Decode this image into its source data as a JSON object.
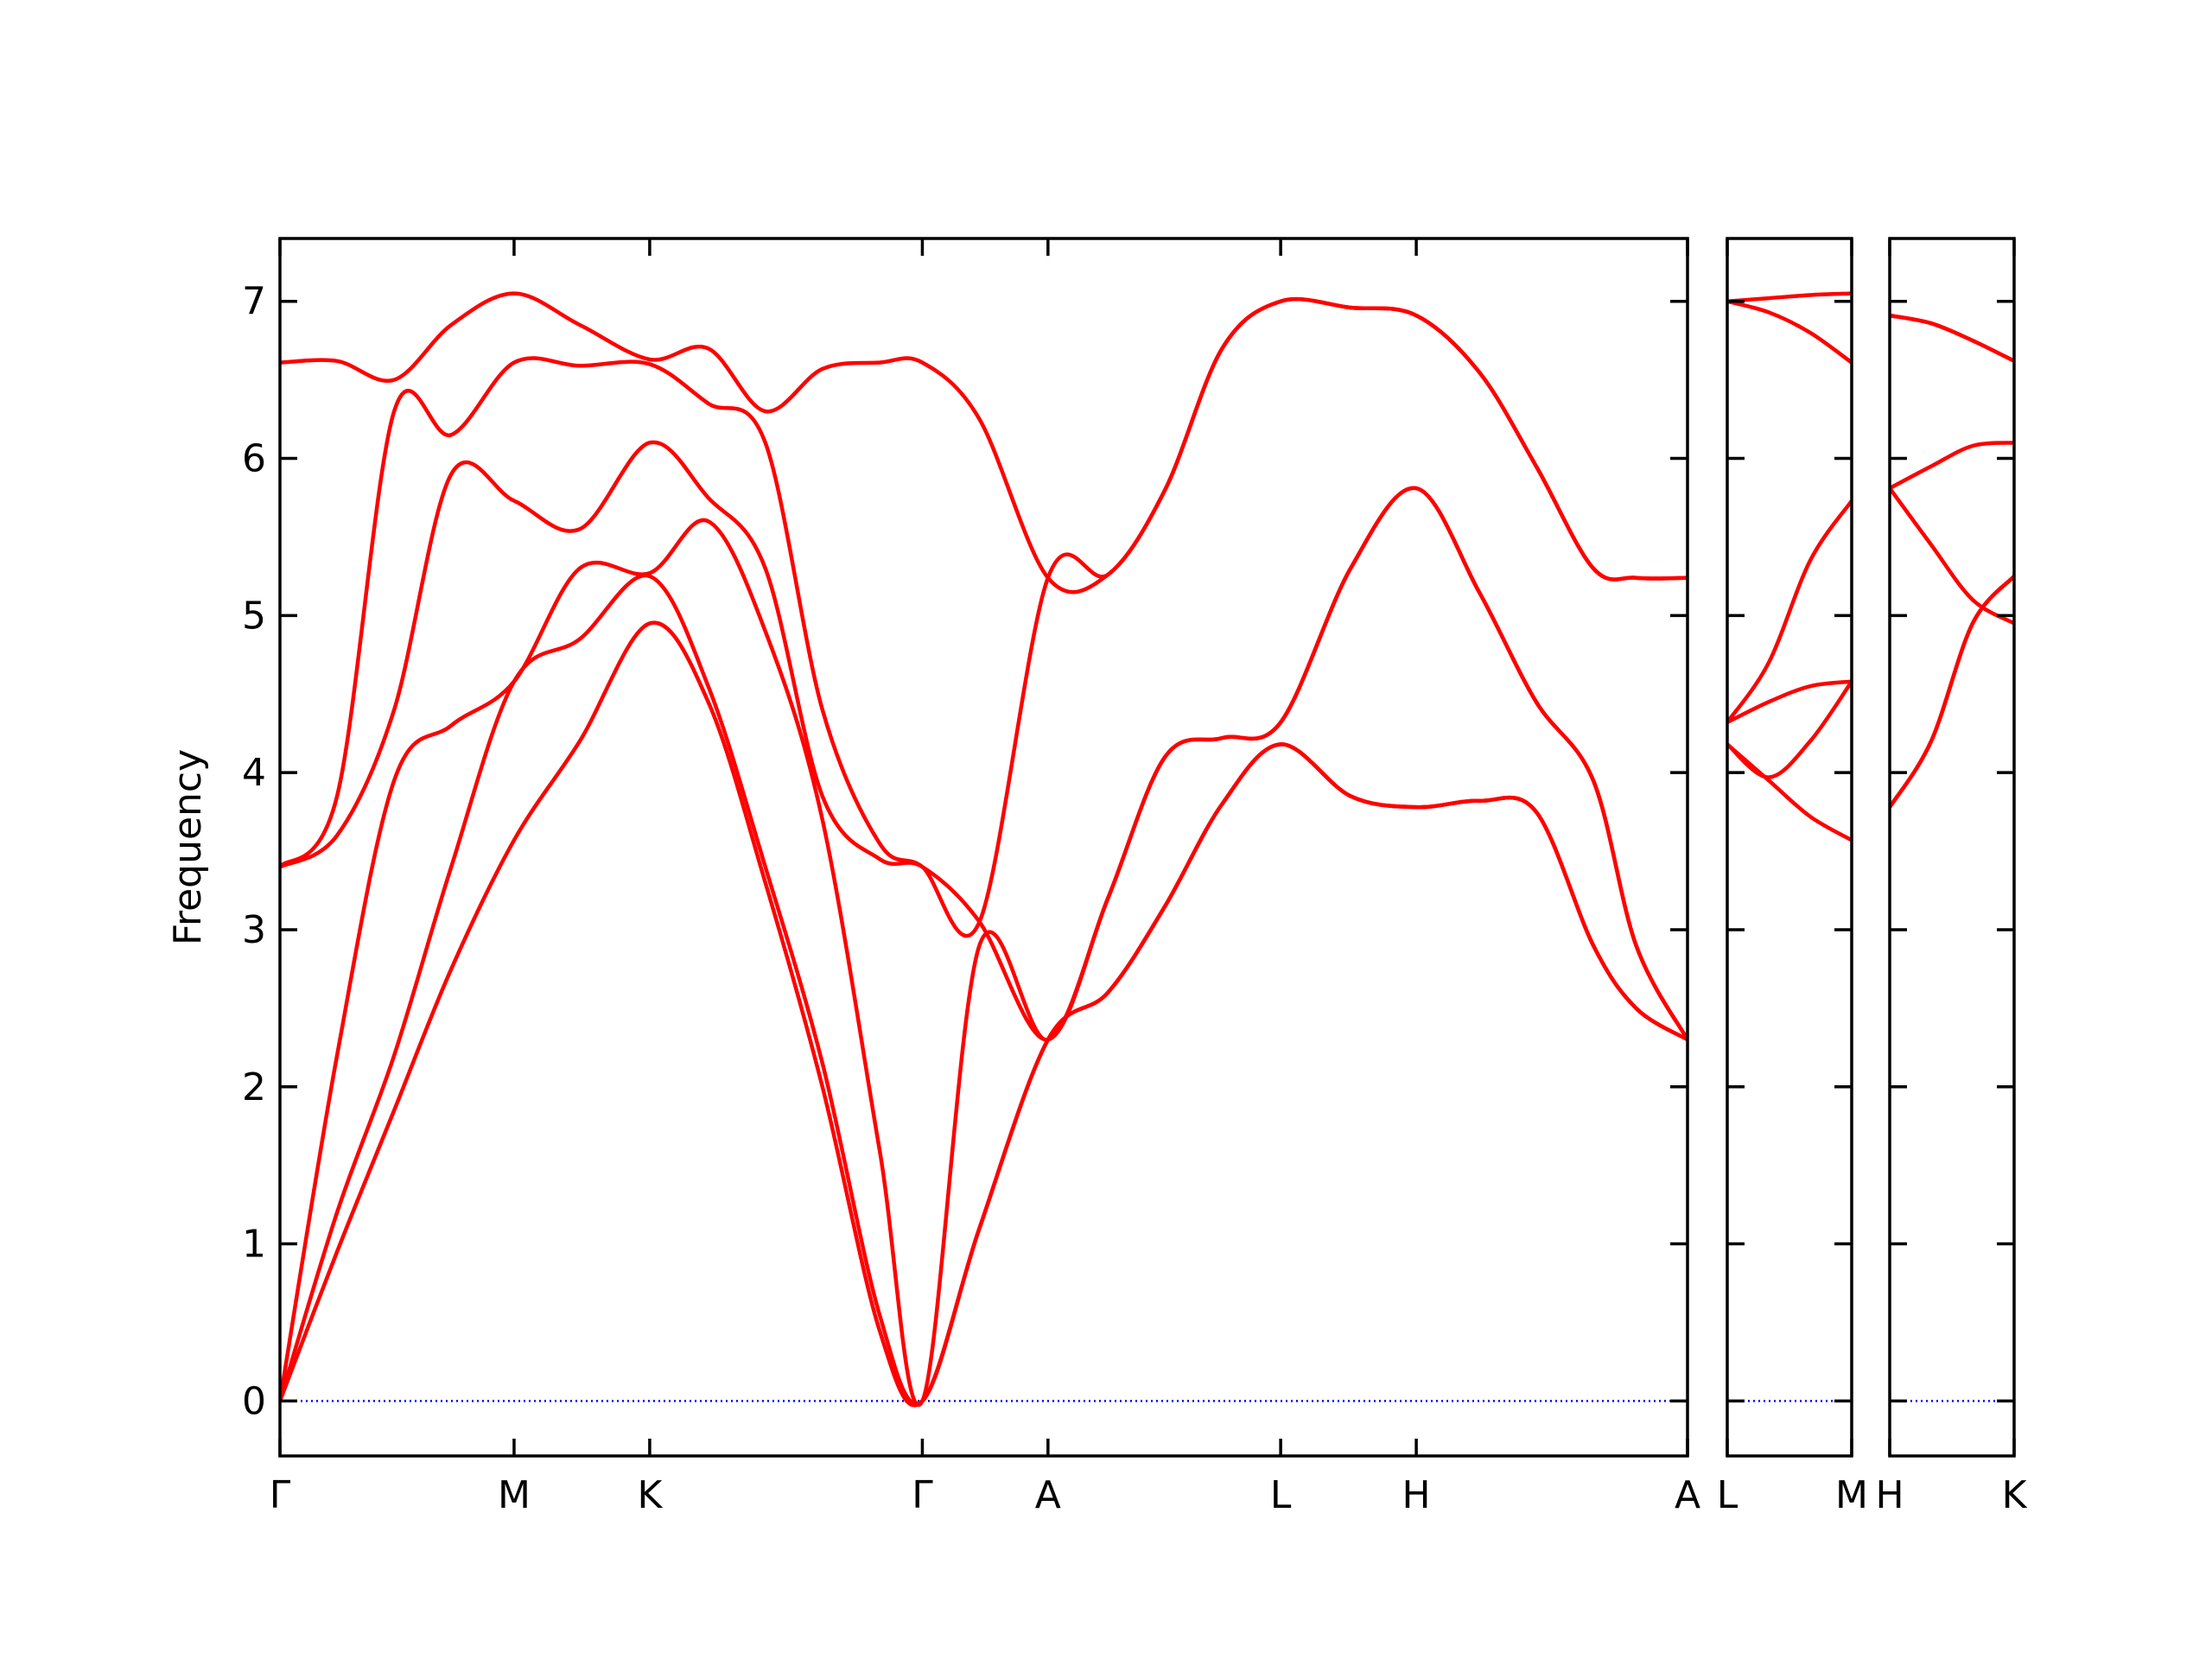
{
  "chart_data": [
    {
      "type": "line",
      "ylabel": "Frequency",
      "show_ytick_labels": true,
      "xlim": [
        0,
        9.86
      ],
      "ylim": [
        -0.35,
        7.4
      ],
      "yticks": [
        0,
        1,
        2,
        3,
        4,
        5,
        6,
        7
      ],
      "xticks": [
        {
          "value": 0,
          "label": "Γ"
        },
        {
          "value": 1.64,
          "label": "M"
        },
        {
          "value": 2.59,
          "label": "K"
        },
        {
          "value": 4.5,
          "label": "Γ"
        },
        {
          "value": 5.38,
          "label": "A"
        },
        {
          "value": 7.01,
          "label": "L"
        },
        {
          "value": 7.96,
          "label": "H"
        },
        {
          "value": 9.86,
          "label": "A"
        }
      ],
      "hline": {
        "y": 0,
        "color": "#0000ff"
      },
      "x": [
        0,
        0.4,
        0.8,
        1.2,
        1.64,
        2.1,
        2.59,
        3.0,
        3.4,
        3.8,
        4.2,
        4.5,
        4.9,
        5.38,
        5.8,
        6.2,
        6.6,
        7.01,
        7.5,
        7.96,
        8.4,
        8.8,
        9.2,
        9.5,
        9.86
      ],
      "series": [
        {
          "color": "#ff0000",
          "values": [
            0,
            0.95,
            1.85,
            2.75,
            3.57,
            4.2,
            4.95,
            4.45,
            3.3,
            2.0,
            0.45,
            0,
            1.1,
            2.3,
            2.6,
            3.15,
            3.8,
            4.18,
            3.85,
            3.78,
            3.82,
            3.75,
            2.9,
            2.5,
            2.3
          ]
        },
        {
          "color": "#ff0000",
          "values": [
            0,
            1.2,
            2.2,
            3.4,
            4.58,
            4.85,
            5.25,
            4.55,
            3.4,
            2.15,
            0.55,
            0,
            1.1,
            2.3,
            2.6,
            3.15,
            3.8,
            4.18,
            3.85,
            3.78,
            3.82,
            3.75,
            2.9,
            2.5,
            2.3
          ]
        },
        {
          "color": "#ff0000",
          "values": [
            0,
            2.2,
            3.95,
            4.3,
            4.58,
            5.3,
            5.27,
            5.6,
            4.9,
            3.7,
            1.6,
            0,
            2.9,
            2.3,
            3.2,
            4.1,
            4.22,
            4.32,
            5.3,
            5.81,
            5.15,
            4.45,
            3.95,
            2.9,
            2.3
          ]
        },
        {
          "color": "#ff0000",
          "values": [
            3.4,
            3.6,
            4.4,
            5.9,
            5.73,
            5.55,
            6.1,
            5.75,
            5.3,
            3.85,
            3.45,
            3.4,
            3.05,
            2.3,
            3.2,
            4.1,
            4.22,
            4.32,
            5.3,
            5.81,
            5.15,
            4.45,
            3.95,
            2.9,
            2.3
          ]
        },
        {
          "color": "#ff0000",
          "values": [
            3.4,
            3.85,
            6.3,
            6.15,
            6.61,
            6.59,
            6.6,
            6.35,
            6.1,
            4.4,
            3.55,
            3.4,
            3.05,
            5.24,
            5.26,
            5.8,
            6.7,
            7.0,
            6.96,
            6.91,
            6.55,
            5.95,
            5.3,
            5.24,
            5.24
          ]
        },
        {
          "color": "#ff0000",
          "values": [
            6.61,
            6.62,
            6.5,
            6.85,
            7.05,
            6.85,
            6.63,
            6.7,
            6.3,
            6.57,
            6.61,
            6.61,
            6.25,
            5.24,
            5.26,
            5.8,
            6.7,
            7.0,
            6.96,
            6.91,
            6.55,
            5.95,
            5.3,
            5.24,
            5.24
          ]
        }
      ]
    },
    {
      "type": "line",
      "show_ytick_labels": false,
      "xlim": [
        0,
        0.87
      ],
      "ylim": [
        -0.35,
        7.4
      ],
      "yticks": [
        0,
        1,
        2,
        3,
        4,
        5,
        6,
        7
      ],
      "xticks": [
        {
          "value": 0,
          "label": "L"
        },
        {
          "value": 0.87,
          "label": "M"
        }
      ],
      "hline": {
        "y": 0,
        "color": "#0000ff"
      },
      "x": [
        0,
        0.29,
        0.58,
        0.87
      ],
      "series": [
        {
          "color": "#ff0000",
          "values": [
            4.18,
            3.95,
            3.72,
            3.57
          ]
        },
        {
          "color": "#ff0000",
          "values": [
            4.18,
            3.97,
            4.2,
            4.58
          ]
        },
        {
          "color": "#ff0000",
          "values": [
            4.32,
            4.45,
            4.55,
            4.58
          ]
        },
        {
          "color": "#ff0000",
          "values": [
            4.32,
            4.7,
            5.35,
            5.73
          ]
        },
        {
          "color": "#ff0000",
          "values": [
            7.0,
            6.93,
            6.8,
            6.61
          ]
        },
        {
          "color": "#ff0000",
          "values": [
            7.0,
            7.02,
            7.04,
            7.05
          ]
        }
      ]
    },
    {
      "type": "line",
      "show_ytick_labels": false,
      "xlim": [
        0,
        0.87
      ],
      "ylim": [
        -0.35,
        7.4
      ],
      "yticks": [
        0,
        1,
        2,
        3,
        4,
        5,
        6,
        7
      ],
      "xticks": [
        {
          "value": 0,
          "label": "H"
        },
        {
          "value": 0.87,
          "label": "K"
        }
      ],
      "hline": {
        "y": 0,
        "color": "#0000ff"
      },
      "x": [
        0,
        0.29,
        0.58,
        0.87
      ],
      "series": [
        {
          "color": "#ff0000",
          "values": [
            3.78,
            4.2,
            4.95,
            5.25
          ]
        },
        {
          "color": "#ff0000",
          "values": [
            3.78,
            4.2,
            4.95,
            5.25
          ]
        },
        {
          "color": "#ff0000",
          "values": [
            5.81,
            5.45,
            5.1,
            4.95
          ]
        },
        {
          "color": "#ff0000",
          "values": [
            5.81,
            5.95,
            6.08,
            6.1
          ]
        },
        {
          "color": "#ff0000",
          "values": [
            6.91,
            6.86,
            6.75,
            6.62
          ]
        },
        {
          "color": "#ff0000",
          "values": [
            6.91,
            6.86,
            6.75,
            6.62
          ]
        }
      ]
    }
  ]
}
